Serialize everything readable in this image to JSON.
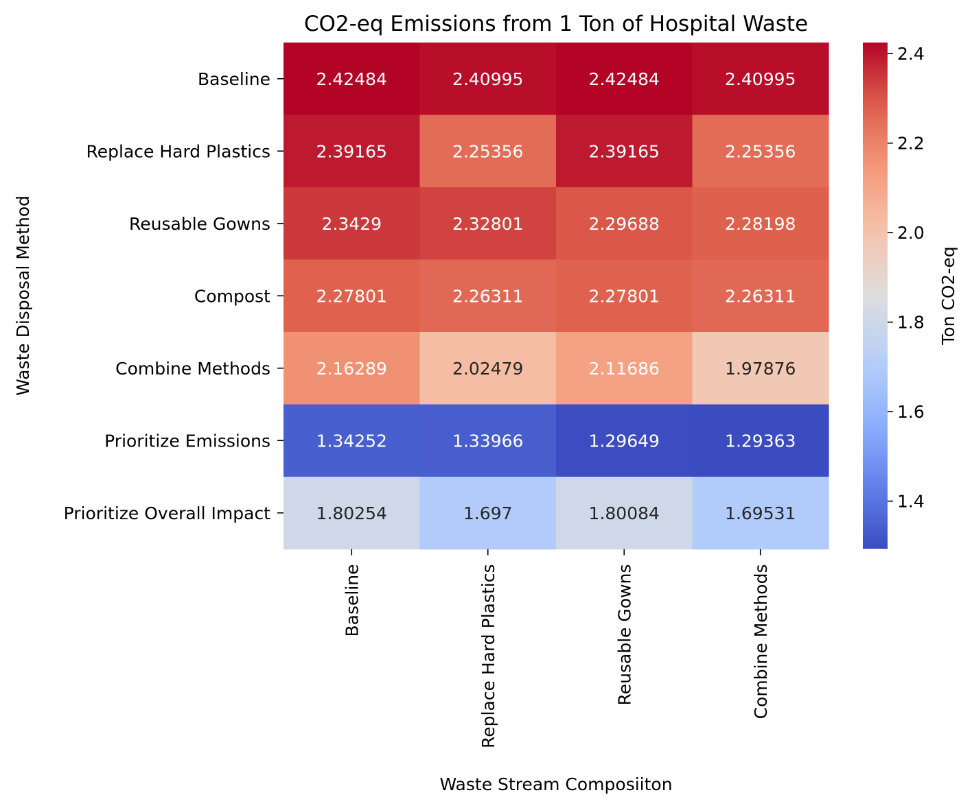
{
  "chart_data": {
    "type": "heatmap",
    "title": "CO2-eq Emissions from 1 Ton of Hospital Waste",
    "xlabel": "Waste Stream Composiiton",
    "ylabel": "Waste Disposal Method",
    "colorbar_label": "Ton CO2-eq",
    "colormap": "coolwarm",
    "x_categories": [
      "Baseline",
      "Replace Hard Plastics",
      "Reusable Gowns",
      "Combine Methods"
    ],
    "y_categories": [
      "Baseline",
      "Replace Hard Plastics",
      "Reusable Gowns",
      "Compost",
      "Combine Methods",
      "Prioritize Emissions",
      "Prioritize Overall Impact"
    ],
    "values": [
      [
        2.42484,
        2.40995,
        2.42484,
        2.40995
      ],
      [
        2.39165,
        2.25356,
        2.39165,
        2.25356
      ],
      [
        2.3429,
        2.32801,
        2.29688,
        2.28198
      ],
      [
        2.27801,
        2.26311,
        2.27801,
        2.26311
      ],
      [
        2.16289,
        2.02479,
        2.11686,
        1.97876
      ],
      [
        1.34252,
        1.33966,
        1.29649,
        1.29363
      ],
      [
        1.80254,
        1.697,
        1.80084,
        1.69531
      ]
    ],
    "labels": [
      [
        "2.42484",
        "2.40995",
        "2.42484",
        "2.40995"
      ],
      [
        "2.39165",
        "2.25356",
        "2.39165",
        "2.25356"
      ],
      [
        "2.3429",
        "2.32801",
        "2.29688",
        "2.28198"
      ],
      [
        "2.27801",
        "2.26311",
        "2.27801",
        "2.26311"
      ],
      [
        "2.16289",
        "2.02479",
        "2.11686",
        "1.97876"
      ],
      [
        "1.34252",
        "1.33966",
        "1.29649",
        "1.29363"
      ],
      [
        "1.80254",
        "1.697",
        "1.80084",
        "1.69531"
      ]
    ],
    "colorbar_range": [
      1.29363,
      2.42484
    ],
    "colorbar_ticks": [
      1.4,
      1.6,
      1.8,
      2.0,
      2.2,
      2.4
    ],
    "colorbar_tick_labels": [
      "1.4",
      "1.6",
      "1.8",
      "2.0",
      "2.2",
      "2.4"
    ]
  }
}
